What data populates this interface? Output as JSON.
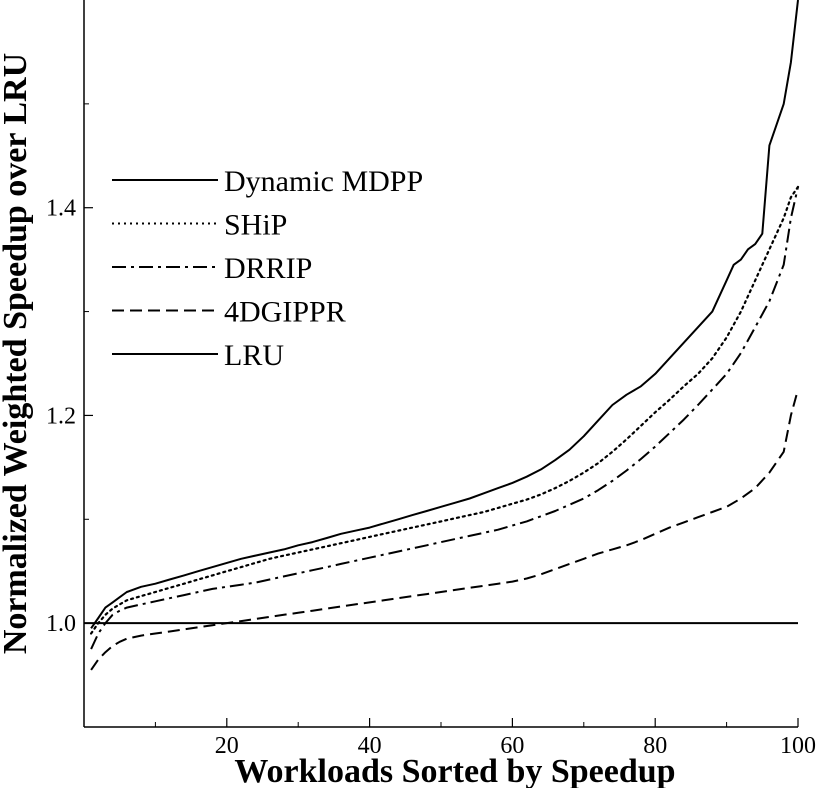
{
  "chart_data": {
    "type": "line",
    "title": "",
    "xlabel": "Workloads Sorted by Speedup",
    "ylabel": "Normalized Weighted Speedup over LRU",
    "xlim": [
      0,
      100
    ],
    "ylim": [
      0.9,
      1.6
    ],
    "x_ticks": [
      20,
      40,
      60,
      80,
      100
    ],
    "x_tick_labels": [
      "20",
      "40",
      "60",
      "80",
      "100"
    ],
    "x_minor_ticks": [
      10,
      30,
      50,
      70,
      90
    ],
    "y_ticks": [
      1.0,
      1.2,
      1.4
    ],
    "y_tick_labels": [
      "1.0",
      "1.2",
      "1.4"
    ],
    "y_minor_ticks": [
      1.1,
      1.3,
      1.5
    ],
    "grid": false,
    "legend_position": "upper-left",
    "series": [
      {
        "name": "Dynamic MDPP",
        "style": "solid",
        "color": "#000000",
        "x": [
          1,
          2,
          3,
          4,
          5,
          6,
          8,
          10,
          12,
          14,
          16,
          18,
          20,
          22,
          24,
          26,
          28,
          30,
          32,
          34,
          36,
          38,
          40,
          42,
          44,
          46,
          48,
          50,
          52,
          54,
          56,
          58,
          60,
          62,
          64,
          66,
          68,
          70,
          72,
          74,
          76,
          78,
          80,
          82,
          84,
          86,
          88,
          90,
          91,
          92,
          93,
          94,
          95,
          96,
          97,
          98,
          99,
          100
        ],
        "y": [
          0.995,
          1.005,
          1.015,
          1.02,
          1.025,
          1.03,
          1.035,
          1.038,
          1.042,
          1.046,
          1.05,
          1.054,
          1.058,
          1.062,
          1.065,
          1.068,
          1.071,
          1.075,
          1.078,
          1.082,
          1.086,
          1.089,
          1.092,
          1.096,
          1.1,
          1.104,
          1.108,
          1.112,
          1.116,
          1.12,
          1.125,
          1.13,
          1.135,
          1.141,
          1.148,
          1.157,
          1.167,
          1.18,
          1.195,
          1.21,
          1.22,
          1.228,
          1.24,
          1.255,
          1.27,
          1.285,
          1.3,
          1.33,
          1.345,
          1.35,
          1.36,
          1.365,
          1.375,
          1.46,
          1.48,
          1.5,
          1.54,
          1.6
        ]
      },
      {
        "name": "SHiP",
        "style": "dotted",
        "color": "#000000",
        "x": [
          1,
          2,
          3,
          4,
          5,
          6,
          8,
          10,
          12,
          14,
          16,
          18,
          20,
          22,
          24,
          26,
          28,
          30,
          32,
          34,
          36,
          38,
          40,
          42,
          44,
          46,
          48,
          50,
          52,
          54,
          56,
          58,
          60,
          62,
          64,
          66,
          68,
          70,
          72,
          74,
          76,
          78,
          80,
          82,
          84,
          86,
          88,
          90,
          92,
          94,
          96,
          98,
          99,
          100
        ],
        "y": [
          0.99,
          1.0,
          1.008,
          1.014,
          1.018,
          1.022,
          1.026,
          1.03,
          1.034,
          1.038,
          1.042,
          1.046,
          1.05,
          1.054,
          1.058,
          1.062,
          1.065,
          1.068,
          1.071,
          1.074,
          1.077,
          1.08,
          1.083,
          1.086,
          1.089,
          1.092,
          1.095,
          1.098,
          1.101,
          1.104,
          1.107,
          1.111,
          1.115,
          1.119,
          1.124,
          1.13,
          1.137,
          1.145,
          1.154,
          1.165,
          1.177,
          1.19,
          1.203,
          1.215,
          1.228,
          1.24,
          1.255,
          1.275,
          1.3,
          1.33,
          1.36,
          1.39,
          1.41,
          1.42
        ]
      },
      {
        "name": "DRRIP",
        "style": "dashdot",
        "color": "#000000",
        "x": [
          1,
          2,
          3,
          4,
          5,
          6,
          8,
          10,
          12,
          14,
          16,
          18,
          20,
          22,
          24,
          26,
          28,
          30,
          32,
          34,
          36,
          38,
          40,
          42,
          44,
          46,
          48,
          50,
          52,
          54,
          56,
          58,
          60,
          62,
          64,
          66,
          68,
          70,
          72,
          74,
          76,
          78,
          80,
          82,
          84,
          86,
          88,
          90,
          92,
          94,
          96,
          98,
          99,
          100
        ],
        "y": [
          0.975,
          0.99,
          1.0,
          1.008,
          1.012,
          1.015,
          1.018,
          1.021,
          1.024,
          1.027,
          1.03,
          1.033,
          1.035,
          1.037,
          1.039,
          1.042,
          1.045,
          1.048,
          1.051,
          1.054,
          1.057,
          1.06,
          1.063,
          1.066,
          1.069,
          1.072,
          1.075,
          1.078,
          1.081,
          1.084,
          1.087,
          1.09,
          1.094,
          1.098,
          1.103,
          1.108,
          1.114,
          1.12,
          1.128,
          1.137,
          1.147,
          1.158,
          1.17,
          1.183,
          1.196,
          1.21,
          1.225,
          1.24,
          1.26,
          1.285,
          1.31,
          1.345,
          1.39,
          1.42
        ]
      },
      {
        "name": "4DGIPPR",
        "style": "dashed",
        "color": "#000000",
        "x": [
          1,
          2,
          3,
          4,
          5,
          6,
          8,
          10,
          12,
          14,
          16,
          18,
          20,
          22,
          24,
          26,
          28,
          30,
          32,
          34,
          36,
          38,
          40,
          42,
          44,
          46,
          48,
          50,
          52,
          54,
          56,
          58,
          60,
          62,
          64,
          66,
          68,
          70,
          72,
          74,
          76,
          78,
          80,
          82,
          84,
          86,
          88,
          90,
          92,
          94,
          96,
          98,
          99,
          100
        ],
        "y": [
          0.955,
          0.965,
          0.972,
          0.978,
          0.982,
          0.985,
          0.988,
          0.99,
          0.992,
          0.994,
          0.996,
          0.998,
          1.0,
          1.002,
          1.004,
          1.006,
          1.008,
          1.01,
          1.012,
          1.014,
          1.016,
          1.018,
          1.02,
          1.022,
          1.024,
          1.026,
          1.028,
          1.03,
          1.032,
          1.034,
          1.036,
          1.038,
          1.04,
          1.043,
          1.047,
          1.052,
          1.057,
          1.062,
          1.067,
          1.071,
          1.075,
          1.08,
          1.086,
          1.092,
          1.097,
          1.102,
          1.107,
          1.112,
          1.12,
          1.13,
          1.145,
          1.165,
          1.2,
          1.225
        ]
      },
      {
        "name": "LRU",
        "style": "solid",
        "color": "#000000",
        "x": [
          0,
          100
        ],
        "y": [
          1.0,
          1.0
        ]
      }
    ]
  }
}
